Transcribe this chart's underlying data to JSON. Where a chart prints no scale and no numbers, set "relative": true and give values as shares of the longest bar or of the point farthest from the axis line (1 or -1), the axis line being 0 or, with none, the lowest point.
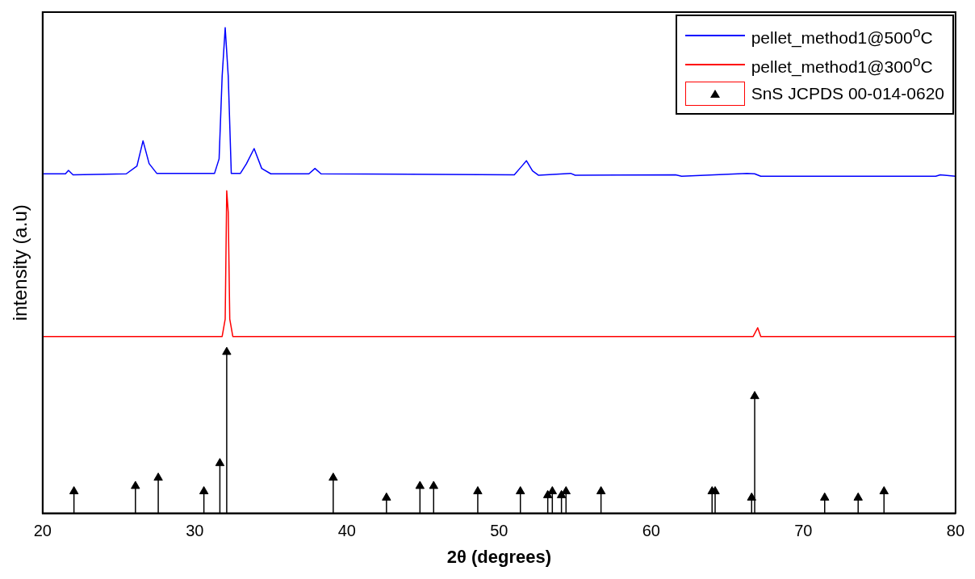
{
  "chart_data": {
    "type": "line",
    "xlabel": "2θ (degrees)",
    "ylabel": "intensity (a.u)",
    "relative": true,
    "xlim": [
      20,
      80
    ],
    "xticks": [
      20,
      30,
      40,
      50,
      60,
      70,
      80
    ],
    "grid": false,
    "legend": "top right",
    "series": [
      {
        "name": "pellet_method1@500$^{o}$C",
        "color": "#0000ff",
        "x": [
          20,
          21.5,
          21.7,
          22,
          25.5,
          26.2,
          26.6,
          27.0,
          27.5,
          31.3,
          31.6,
          31.8,
          32.0,
          32.2,
          32.4,
          33.0,
          33.4,
          33.9,
          34.4,
          35,
          37.5,
          37.9,
          38.3,
          51.0,
          51.5,
          51.8,
          52.2,
          52.6,
          54.7,
          55,
          61.6,
          62,
          66.3,
          66.8,
          67.2,
          78.7,
          79,
          80
        ],
        "values": [
          0.699,
          0.699,
          0.706,
          0.697,
          0.699,
          0.715,
          0.767,
          0.72,
          0.7,
          0.7,
          0.73,
          0.9,
          1.0,
          0.9,
          0.7,
          0.7,
          0.72,
          0.751,
          0.71,
          0.699,
          0.699,
          0.71,
          0.699,
          0.697,
          0.715,
          0.726,
          0.705,
          0.696,
          0.7,
          0.696,
          0.697,
          0.694,
          0.7,
          0.699,
          0.694,
          0.694,
          0.697,
          0.694
        ]
      },
      {
        "name": "pellet_method1@300$^{o}$C",
        "color": "#ff0000",
        "x": [
          20,
          31.8,
          32.0,
          32.1,
          32.2,
          32.3,
          32.5,
          66.7,
          67.0,
          67.2,
          80
        ],
        "values": [
          0.364,
          0.364,
          0.4,
          0.664,
          0.62,
          0.4,
          0.364,
          0.364,
          0.382,
          0.364,
          0.364
        ]
      },
      {
        "name": "SnS JCPDS 00-014-0620",
        "color": "#000000",
        "type": "lollipop",
        "marker": "triangle",
        "x": [
          22.06,
          26.1,
          27.6,
          30.6,
          31.65,
          32.1,
          39.1,
          42.6,
          44.8,
          45.7,
          48.6,
          51.4,
          53.2,
          53.5,
          54.1,
          54.4,
          56.7,
          64.0,
          64.2,
          66.6,
          66.8,
          71.4,
          73.6,
          75.3
        ],
        "values": [
          0.045,
          0.056,
          0.073,
          0.045,
          0.103,
          0.332,
          0.073,
          0.032,
          0.056,
          0.056,
          0.045,
          0.045,
          0.037,
          0.045,
          0.037,
          0.045,
          0.045,
          0.045,
          0.045,
          0.032,
          0.241,
          0.032,
          0.032,
          0.045
        ]
      }
    ]
  }
}
